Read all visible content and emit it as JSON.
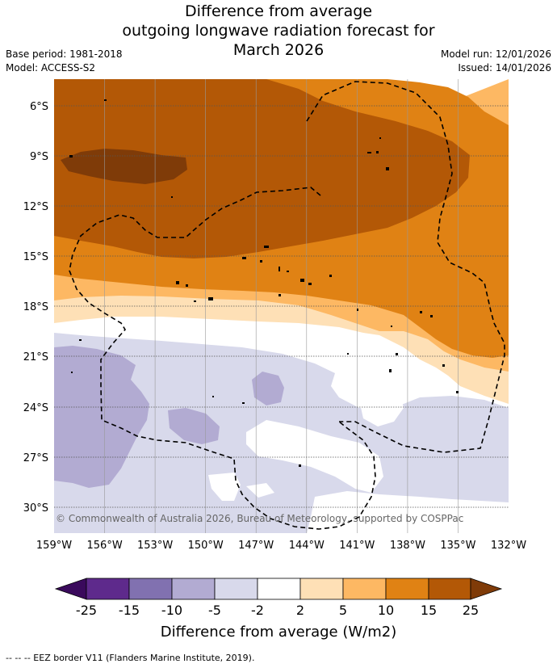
{
  "title": {
    "line1": "Difference from average",
    "line2": "outgoing longwave radiation forecast for",
    "line3": "March 2026"
  },
  "meta": {
    "base_period": "Base period: 1981-2018",
    "model": "Model: ACCESS-S2",
    "model_run": "Model run: 12/01/2026",
    "issued": "Issued: 14/01/2026"
  },
  "axes": {
    "lat_labels": [
      "6°S",
      "9°S",
      "12°S",
      "15°S",
      "18°S",
      "21°S",
      "24°S",
      "27°S",
      "30°S"
    ],
    "lon_labels": [
      "159°W",
      "156°W",
      "153°W",
      "150°W",
      "147°W",
      "144°W",
      "141°W",
      "138°W",
      "135°W",
      "132°W"
    ]
  },
  "copyright": "© Commonwealth of Australia 2026, Bureau of Meteorology, supported by COSPPac",
  "colorbar": {
    "title": "Difference from average (W/m2)",
    "ticks": [
      "-25",
      "-15",
      "-10",
      "-5",
      "-2",
      "2",
      "5",
      "10",
      "15",
      "25"
    ],
    "colors": {
      "below_min": "#3a0a5c",
      "n25_n15": "#5e2a8c",
      "n15_n10": "#8171b0",
      "n10_n5": "#b2abd2",
      "n5_n2": "#d8d9eb",
      "n2_2": "#ffffff",
      "p2_5": "#fee0b6",
      "p5_10": "#fdb863",
      "p10_15": "#e08214",
      "p15_25": "#b35806",
      "above_max": "#7f3b08"
    }
  },
  "footer": "--  --  -- EEZ border V11 (Flanders Marine Institute, 2019)."
}
